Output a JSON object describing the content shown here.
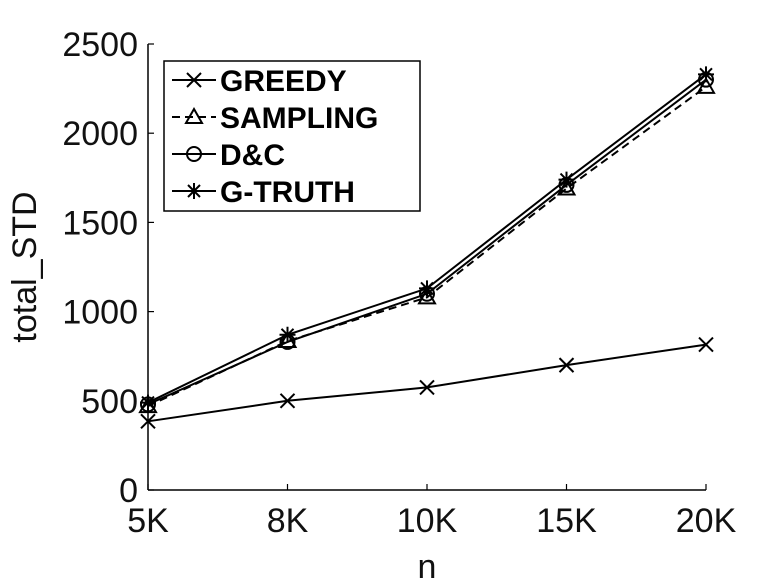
{
  "chart_data": {
    "type": "line",
    "categories": [
      "5K",
      "8K",
      "10K",
      "15K",
      "20K"
    ],
    "xlabel": "n",
    "ylabel": "total_STD",
    "ylim": [
      0,
      2500
    ],
    "yticks": [
      0,
      500,
      1000,
      1500,
      2000,
      2500
    ],
    "grid": false,
    "legend_position": "top-left",
    "series": [
      {
        "name": "GREEDY",
        "marker": "x",
        "dash": "solid",
        "values": [
          385,
          500,
          575,
          700,
          815
        ]
      },
      {
        "name": "SAMPLING",
        "marker": "triangle",
        "dash": "dashed",
        "values": [
          470,
          835,
          1080,
          1690,
          2260
        ]
      },
      {
        "name": "D&C",
        "marker": "circle",
        "dash": "solid",
        "values": [
          480,
          830,
          1100,
          1710,
          2300
        ]
      },
      {
        "name": "G-TRUTH",
        "marker": "star",
        "dash": "solid",
        "values": [
          490,
          870,
          1130,
          1740,
          2330
        ]
      }
    ]
  }
}
